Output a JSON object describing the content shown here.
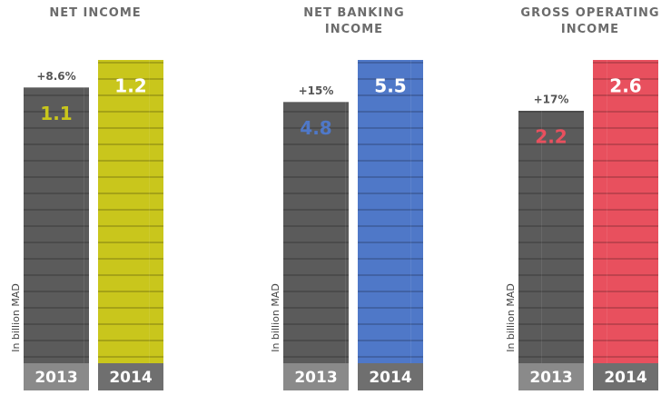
{
  "chart_data": [
    {
      "type": "bar",
      "title": "NET INCOME",
      "annotation": "+8.6%",
      "y_label": "In billion MAD",
      "categories": [
        "2013",
        "2014"
      ],
      "values": [
        1.1,
        1.2
      ],
      "color": "#c9c61c",
      "ylim": [
        0,
        1.2
      ]
    },
    {
      "type": "bar",
      "title": "NET BANKING INCOME",
      "annotation": "+15%",
      "y_label": "In billion MAD",
      "categories": [
        "2013",
        "2014"
      ],
      "values": [
        4.8,
        5.5
      ],
      "color": "#4f78c8",
      "ylim": [
        0,
        5.5
      ]
    },
    {
      "type": "bar",
      "title": "GROSS OPERATING INCOME",
      "annotation": "+17%",
      "y_label": "In billion MAD",
      "categories": [
        "2013",
        "2014"
      ],
      "values": [
        2.2,
        2.6
      ],
      "color": "#e8505e",
      "ylim": [
        0,
        2.6
      ]
    }
  ]
}
